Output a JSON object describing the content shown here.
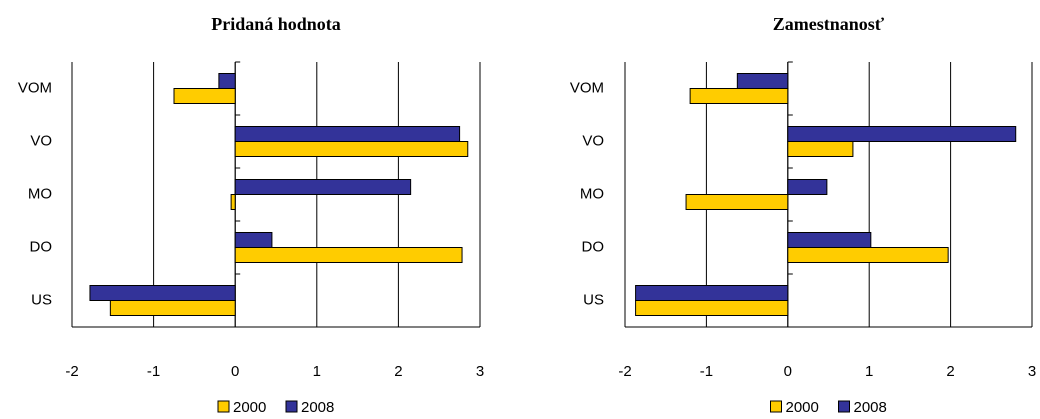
{
  "chart_data": [
    {
      "type": "barh",
      "title": "Pridaná hodnota",
      "categories": [
        "VOM",
        "VO",
        "MO",
        "DO",
        "US"
      ],
      "series": [
        {
          "name": "2000",
          "color": "#ffcc00",
          "values": [
            -0.75,
            2.85,
            -0.05,
            2.78,
            -1.53
          ]
        },
        {
          "name": "2008",
          "color": "#333399",
          "values": [
            -0.2,
            2.75,
            2.15,
            0.45,
            -1.78
          ]
        }
      ],
      "xlim": [
        -2,
        3
      ],
      "xticks": [
        -2,
        -1,
        0,
        1,
        2,
        3
      ],
      "grid": true,
      "legend": "bottom"
    },
    {
      "type": "barh",
      "title": "Zamestnanosť",
      "categories": [
        "VOM",
        "VO",
        "MO",
        "DO",
        "US"
      ],
      "series": [
        {
          "name": "2000",
          "color": "#ffcc00",
          "values": [
            -1.2,
            0.8,
            -1.25,
            1.97,
            -1.87
          ]
        },
        {
          "name": "2008",
          "color": "#333399",
          "values": [
            -0.62,
            2.8,
            0.48,
            1.02,
            -1.87
          ]
        }
      ],
      "xlim": [
        -2,
        3
      ],
      "xticks": [
        -2,
        -1,
        0,
        1,
        2,
        3
      ],
      "grid": true,
      "legend": "bottom"
    }
  ]
}
